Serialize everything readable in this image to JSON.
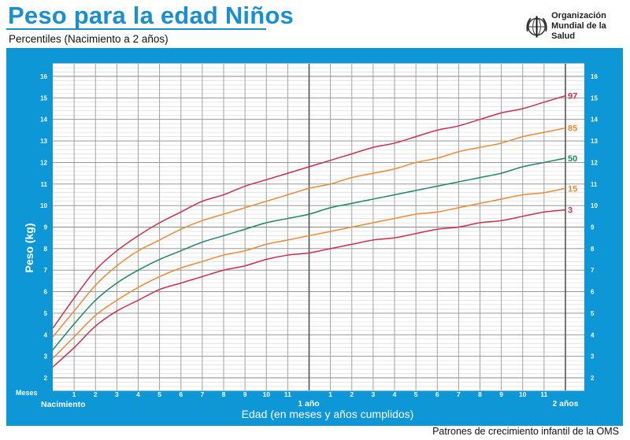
{
  "header": {
    "title": "Peso para la edad Niños",
    "subtitle": "Percentiles (Nacimiento a 2 años)",
    "logo_line1": "Organización",
    "logo_line2": "Mundial de la Salud"
  },
  "footer": "Patrones de crecimiento infantil de la OMS",
  "colors": {
    "frame": "#0d97d7",
    "p3": "#c9304a",
    "p15": "#ec8a34",
    "p50": "#1c8a5c",
    "p85": "#ec8a34",
    "p97": "#c9304a"
  },
  "chart_data": {
    "type": "line",
    "title": "Peso para la edad Niños",
    "subtitle": "Percentiles (Nacimiento a 2 años)",
    "xlabel": "Edad (en meses y años cumplidos)",
    "ylabel": "Peso (kg)",
    "x_unit_label": "Meses",
    "x_milestones": [
      "Nacimiento",
      "1 año",
      "2 años"
    ],
    "x_tick_labels": [
      "1",
      "2",
      "3",
      "4",
      "5",
      "6",
      "7",
      "8",
      "9",
      "10",
      "11",
      "",
      "1",
      "2",
      "3",
      "4",
      "5",
      "6",
      "7",
      "8",
      "9",
      "10",
      "11"
    ],
    "y_ticks": [
      2,
      3,
      4,
      5,
      6,
      7,
      8,
      9,
      10,
      11,
      12,
      13,
      14,
      15,
      16
    ],
    "xlim": [
      0,
      24
    ],
    "ylim": [
      1.4,
      16.6
    ],
    "grid": true,
    "x": [
      0,
      1,
      2,
      3,
      4,
      5,
      6,
      7,
      8,
      9,
      10,
      11,
      12,
      13,
      14,
      15,
      16,
      17,
      18,
      19,
      20,
      21,
      22,
      23,
      24
    ],
    "series": [
      {
        "name": "97",
        "values": [
          4.3,
          5.7,
          7.0,
          7.9,
          8.6,
          9.2,
          9.7,
          10.2,
          10.5,
          10.9,
          11.2,
          11.5,
          11.8,
          12.1,
          12.4,
          12.7,
          12.9,
          13.2,
          13.5,
          13.7,
          14.0,
          14.3,
          14.5,
          14.8,
          15.1
        ]
      },
      {
        "name": "85",
        "values": [
          3.9,
          5.1,
          6.3,
          7.2,
          7.9,
          8.4,
          8.9,
          9.3,
          9.6,
          9.9,
          10.2,
          10.5,
          10.8,
          11.0,
          11.3,
          11.5,
          11.7,
          12.0,
          12.2,
          12.5,
          12.7,
          12.9,
          13.2,
          13.4,
          13.6
        ]
      },
      {
        "name": "50",
        "values": [
          3.3,
          4.5,
          5.6,
          6.4,
          7.0,
          7.5,
          7.9,
          8.3,
          8.6,
          8.9,
          9.2,
          9.4,
          9.6,
          9.9,
          10.1,
          10.3,
          10.5,
          10.7,
          10.9,
          11.1,
          11.3,
          11.5,
          11.8,
          12.0,
          12.2
        ]
      },
      {
        "name": "15",
        "values": [
          2.9,
          3.9,
          4.9,
          5.6,
          6.2,
          6.7,
          7.1,
          7.4,
          7.7,
          7.9,
          8.2,
          8.4,
          8.6,
          8.8,
          9.0,
          9.2,
          9.4,
          9.6,
          9.7,
          9.9,
          10.1,
          10.3,
          10.5,
          10.6,
          10.8
        ]
      },
      {
        "name": "3",
        "values": [
          2.5,
          3.4,
          4.4,
          5.1,
          5.6,
          6.1,
          6.4,
          6.7,
          7.0,
          7.2,
          7.5,
          7.7,
          7.8,
          8.0,
          8.2,
          8.4,
          8.5,
          8.7,
          8.9,
          9.0,
          9.2,
          9.3,
          9.5,
          9.7,
          9.8
        ]
      }
    ]
  }
}
